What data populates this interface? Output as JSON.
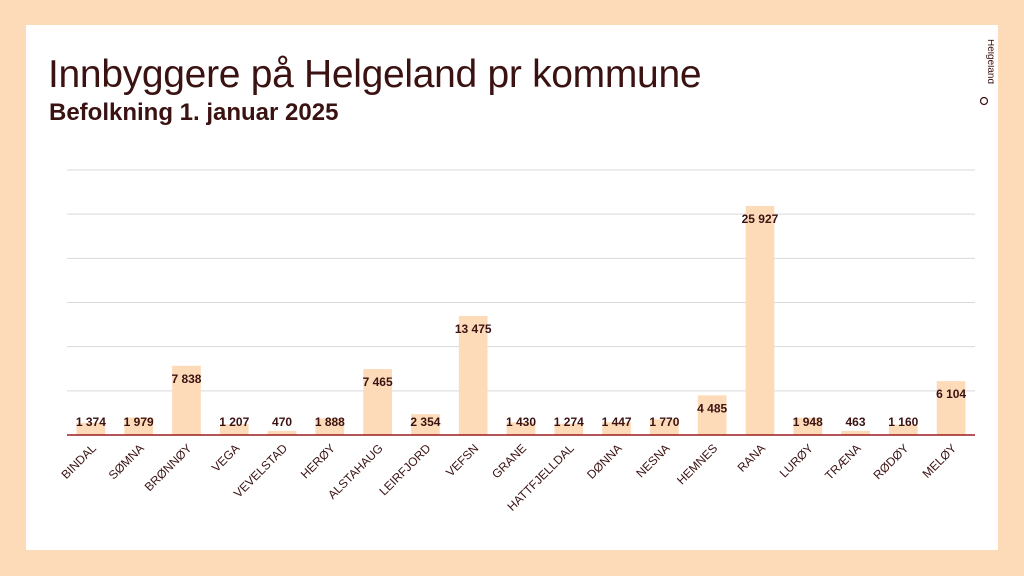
{
  "header": {
    "title": "Innbyggere på Helgeland pr kommune",
    "subtitle": "Befolkning 1. januar 2025"
  },
  "logo": {
    "text": "Helgeland",
    "icon": "helgeland-logo-icon"
  },
  "colors": {
    "page_bg": "#FDDBB8",
    "card_bg": "#FFFFFF",
    "bar": "#FDDBB8",
    "axis": "#9B1C1C",
    "text": "#3B1212",
    "grid": "#D9D9D9"
  },
  "chart_data": {
    "type": "bar",
    "title": "Innbyggere på Helgeland pr kommune",
    "subtitle": "Befolkning 1. januar 2025",
    "xlabel": "",
    "ylabel": "",
    "ylim": [
      0,
      30000
    ],
    "grid": true,
    "legend": "none",
    "categories": [
      "BINDAL",
      "SØMNA",
      "BRØNNØY",
      "VEGA",
      "VEVELSTAD",
      "HERØY",
      "ALSTAHAUG",
      "LEIRFJORD",
      "VEFSN",
      "GRANE",
      "HATTFJELLDAL",
      "DØNNA",
      "NESNA",
      "HEMNES",
      "RANA",
      "LURØY",
      "TRÆNA",
      "RØDØY",
      "MELØY"
    ],
    "values": [
      1374,
      1979,
      7838,
      1207,
      470,
      1888,
      7465,
      2354,
      13475,
      1430,
      1274,
      1447,
      1770,
      4485,
      25927,
      1948,
      463,
      1160,
      6104
    ],
    "data_labels": [
      "1 374",
      "1 979",
      "7 838",
      "1 207",
      "470",
      "1 888",
      "7 465",
      "2 354",
      "13 475",
      "1 430",
      "1 274",
      "1 447",
      "1 770",
      "4 485",
      "25 927",
      "1 948",
      "463",
      "1 160",
      "6 104"
    ]
  }
}
